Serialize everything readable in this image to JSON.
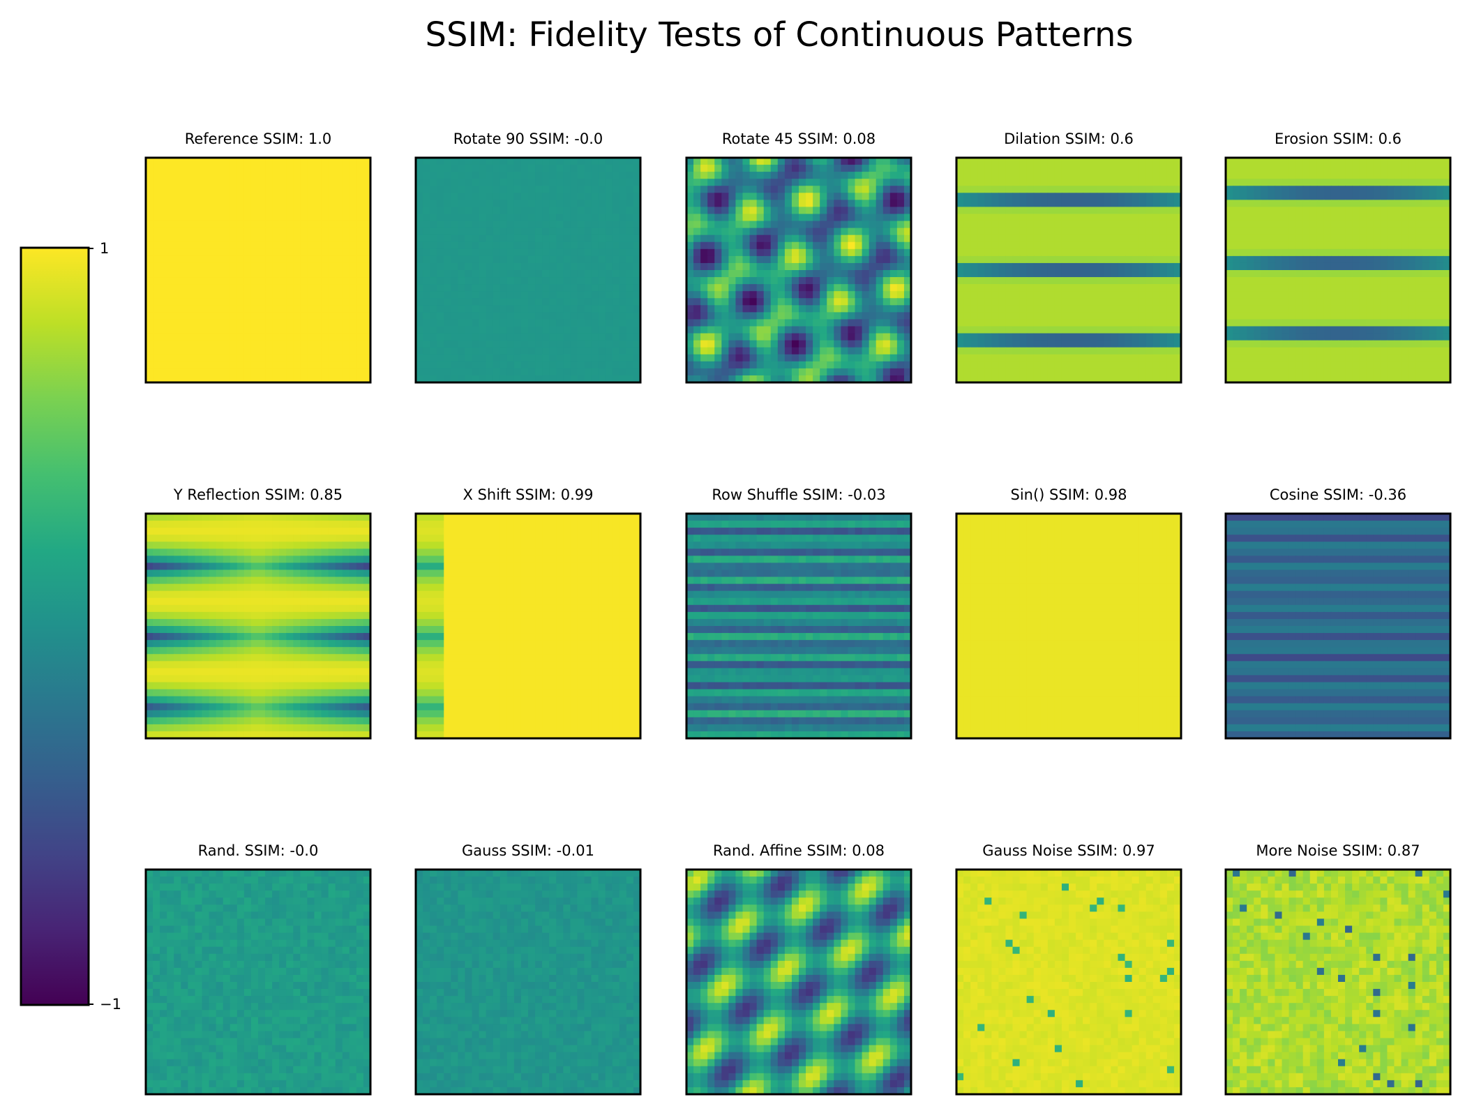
{
  "figure": {
    "title": "SSIM: Fidelity Tests of Continuous Patterns"
  },
  "colorbar": {
    "colormap": "viridis",
    "min_label": "−1",
    "max_label": "1",
    "min": -1,
    "max": 1
  },
  "panels": [
    {
      "label": "Reference  SSIM: 1.0"
    },
    {
      "label": "Rotate 90  SSIM: -0.0"
    },
    {
      "label": "Rotate 45  SSIM: 0.08"
    },
    {
      "label": "Dilation  SSIM: 0.6"
    },
    {
      "label": "Erosion  SSIM: 0.6"
    },
    {
      "label": "Y Reflection  SSIM: 0.85"
    },
    {
      "label": "X Shift  SSIM: 0.99"
    },
    {
      "label": "Row Shuffle  SSIM: -0.03"
    },
    {
      "label": "Sin()  SSIM: 0.98"
    },
    {
      "label": "Cosine  SSIM: -0.36"
    },
    {
      "label": "Rand.  SSIM: -0.0"
    },
    {
      "label": "Gauss  SSIM: -0.01"
    },
    {
      "label": "Rand. Affine  SSIM: 0.08"
    },
    {
      "label": "Gauss Noise  SSIM: 0.97"
    },
    {
      "label": "More Noise  SSIM: 0.87"
    }
  ],
  "chart_data": {
    "type": "heatmap",
    "title": "SSIM: Fidelity Tests of Continuous Patterns",
    "colormap": "viridis",
    "vmin": -1,
    "vmax": 1,
    "grid_shape": [
      3,
      5
    ],
    "panels": [
      {
        "name": "Reference",
        "ssim": 1.0
      },
      {
        "name": "Rotate 90",
        "ssim": -0.0
      },
      {
        "name": "Rotate 45",
        "ssim": 0.08
      },
      {
        "name": "Dilation",
        "ssim": 0.6
      },
      {
        "name": "Erosion",
        "ssim": 0.6
      },
      {
        "name": "Y Reflection",
        "ssim": 0.85
      },
      {
        "name": "X Shift",
        "ssim": 0.99
      },
      {
        "name": "Row Shuffle",
        "ssim": -0.03
      },
      {
        "name": "Sin()",
        "ssim": 0.98
      },
      {
        "name": "Cosine",
        "ssim": -0.36
      },
      {
        "name": "Rand.",
        "ssim": -0.0
      },
      {
        "name": "Gauss",
        "ssim": -0.01
      },
      {
        "name": "Rand. Affine",
        "ssim": 0.08
      },
      {
        "name": "Gauss Noise",
        "ssim": 0.97
      },
      {
        "name": "More Noise",
        "ssim": 0.87
      }
    ]
  }
}
